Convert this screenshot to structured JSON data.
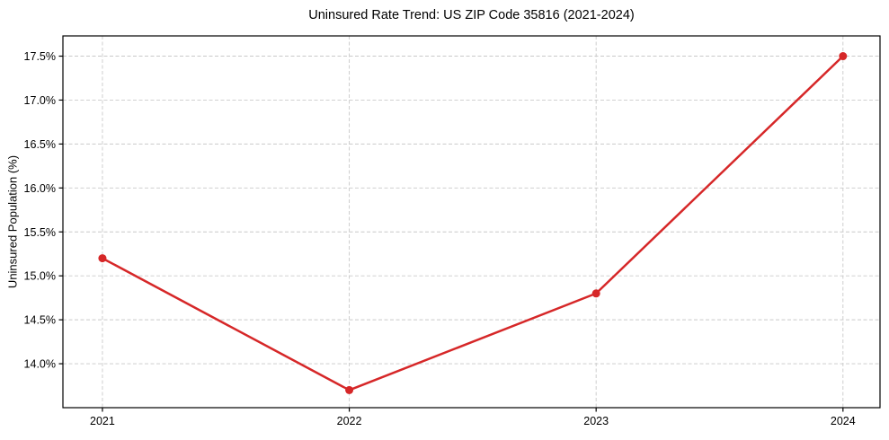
{
  "chart_data": {
    "type": "line",
    "title": "Uninsured Rate Trend: US ZIP Code 35816 (2021-2024)",
    "xlabel": "",
    "ylabel": "Uninsured Population (%)",
    "x": [
      2021,
      2022,
      2023,
      2024
    ],
    "x_labels": [
      "2021",
      "2022",
      "2023",
      "2024"
    ],
    "series": [
      {
        "values": [
          15.2,
          13.7,
          14.8,
          17.5
        ],
        "color": "#d62728"
      }
    ],
    "yticks": [
      14.0,
      14.5,
      15.0,
      15.5,
      16.0,
      16.5,
      17.0,
      17.5
    ],
    "ytick_labels": [
      "14.0%",
      "14.5%",
      "15.0%",
      "15.5%",
      "16.0%",
      "16.5%",
      "17.0%",
      "17.5%"
    ],
    "ylim": [
      13.5,
      17.73
    ],
    "xlim": [
      2020.84,
      2024.15
    ],
    "grid": true,
    "grid_color": "#c9c9c9",
    "grid_dash": "4 2.5",
    "frame_color": "#000000",
    "background": "#ffffff",
    "legend_position": "none"
  }
}
